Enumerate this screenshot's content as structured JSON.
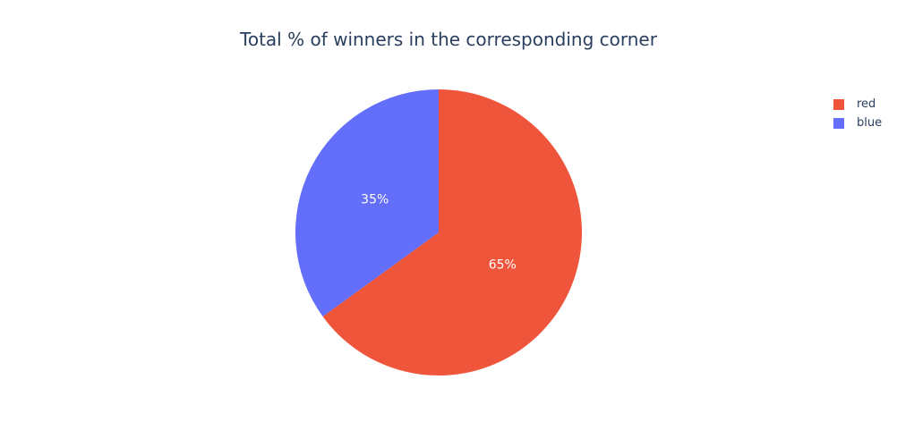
{
  "chart_data": {
    "type": "pie",
    "title": "Total % of winners in the corresponding corner",
    "slices": [
      {
        "label": "red",
        "value": 65,
        "text": "65%",
        "color": "#ef553b"
      },
      {
        "label": "blue",
        "value": 35,
        "text": "35%",
        "color": "#636efa"
      }
    ],
    "legend_position": "top-right"
  }
}
